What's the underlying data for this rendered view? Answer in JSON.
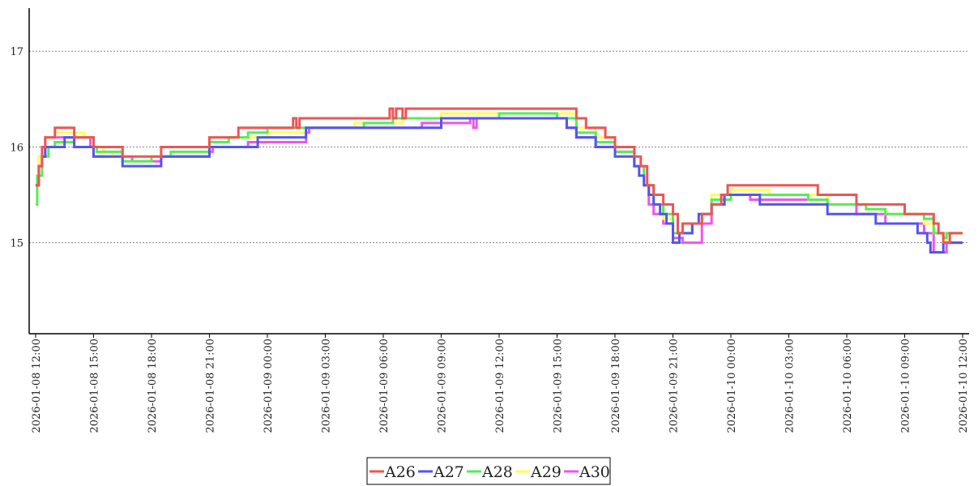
{
  "chart_data": {
    "type": "line",
    "step": true,
    "x_type": "datetime",
    "xlim": [
      "2026-01-08 11:40",
      "2026-01-10 12:20"
    ],
    "xticks": [
      "2026-01-08 12:00",
      "2026-01-08 15:00",
      "2026-01-08 18:00",
      "2026-01-08 21:00",
      "2026-01-09 00:00",
      "2026-01-09 03:00",
      "2026-01-09 06:00",
      "2026-01-09 09:00",
      "2026-01-09 12:00",
      "2026-01-09 15:00",
      "2026-01-09 18:00",
      "2026-01-09 21:00",
      "2026-01-10 00:00",
      "2026-01-10 03:00",
      "2026-01-10 06:00",
      "2026-01-10 09:00",
      "2026-01-10 12:00"
    ],
    "xtick_labels": [
      "2026-01-08 12:00",
      "2026-01-08 15:00",
      "2026-01-08 18:00",
      "2026-01-08 21:00",
      "2026-01-09 00:00",
      "2026-01-09 03:00",
      "2026-01-09 06:00",
      "2026-01-09 09:00",
      "2026-01-09 12:00",
      "2026-01-09 15:00",
      "2026-01-09 18:00",
      "2026-01-09 21:00",
      "2026-01-10 00:00",
      "2026-01-10 03:00",
      "2026-01-10 06:00",
      "2026-01-10 09:00",
      "2026-01-10 12:00"
    ],
    "ylim": [
      14.05,
      17.45
    ],
    "yticks": [
      15,
      16,
      17
    ],
    "ytick_labels": [
      "15",
      "16",
      "17"
    ],
    "grid": "horizontal dotted",
    "legend_position": "bottom-center",
    "title": "",
    "xlabel": "",
    "ylabel": "",
    "series": [
      {
        "name": "A30",
        "color": "#ee55ee",
        "points": [
          [
            "2026-01-08 12:00",
            15.6
          ],
          [
            "2026-01-08 12:10",
            15.9
          ],
          [
            "2026-01-08 12:30",
            16.1
          ],
          [
            "2026-01-08 13:00",
            16.1
          ],
          [
            "2026-01-08 14:50",
            16.0
          ],
          [
            "2026-01-08 15:00",
            15.9
          ],
          [
            "2026-01-08 15:30",
            15.9
          ],
          [
            "2026-01-08 17:00",
            15.85
          ],
          [
            "2026-01-08 18:30",
            15.9
          ],
          [
            "2026-01-08 21:00",
            15.95
          ],
          [
            "2026-01-08 21:10",
            16.0
          ],
          [
            "2026-01-08 23:00",
            16.05
          ],
          [
            "2026-01-09 02:00",
            16.15
          ],
          [
            "2026-01-09 02:10",
            16.2
          ],
          [
            "2026-01-09 06:00",
            16.2
          ],
          [
            "2026-01-09 08:00",
            16.25
          ],
          [
            "2026-01-09 10:30",
            16.3
          ],
          [
            "2026-01-09 10:40",
            16.2
          ],
          [
            "2026-01-09 10:50",
            16.3
          ],
          [
            "2026-01-09 15:30",
            16.2
          ],
          [
            "2026-01-09 16:00",
            16.1
          ],
          [
            "2026-01-09 17:00",
            16.0
          ],
          [
            "2026-01-09 18:00",
            15.95
          ],
          [
            "2026-01-09 19:00",
            15.8
          ],
          [
            "2026-01-09 19:30",
            15.6
          ],
          [
            "2026-01-09 19:45",
            15.4
          ],
          [
            "2026-01-09 20:00",
            15.3
          ],
          [
            "2026-01-09 20:30",
            15.2
          ],
          [
            "2026-01-09 21:00",
            15.05
          ],
          [
            "2026-01-09 21:30",
            15.0
          ],
          [
            "2026-01-09 22:00",
            15.0
          ],
          [
            "2026-01-09 22:30",
            15.2
          ],
          [
            "2026-01-09 23:00",
            15.4
          ],
          [
            "2026-01-09 23:40",
            15.5
          ],
          [
            "2026-01-10 01:00",
            15.45
          ],
          [
            "2026-01-10 03:00",
            15.45
          ],
          [
            "2026-01-10 05:00",
            15.4
          ],
          [
            "2026-01-10 06:30",
            15.3
          ],
          [
            "2026-01-10 08:00",
            15.2
          ],
          [
            "2026-01-10 10:00",
            15.1
          ],
          [
            "2026-01-10 10:30",
            14.9
          ],
          [
            "2026-01-10 11:00",
            14.9
          ],
          [
            "2026-01-10 11:10",
            15.0
          ]
        ]
      },
      {
        "name": "A29",
        "color": "#ffff55",
        "points": [
          [
            "2026-01-08 12:00",
            15.6
          ],
          [
            "2026-01-08 12:10",
            15.9
          ],
          [
            "2026-01-08 12:30",
            16.1
          ],
          [
            "2026-01-08 13:00",
            16.15
          ],
          [
            "2026-01-08 14:30",
            16.1
          ],
          [
            "2026-01-08 15:00",
            16.0
          ],
          [
            "2026-01-08 15:30",
            15.95
          ],
          [
            "2026-01-08 16:00",
            15.9
          ],
          [
            "2026-01-08 18:30",
            16.0
          ],
          [
            "2026-01-08 21:00",
            16.05
          ],
          [
            "2026-01-08 22:00",
            16.1
          ],
          [
            "2026-01-09 00:00",
            16.15
          ],
          [
            "2026-01-09 02:00",
            16.2
          ],
          [
            "2026-01-09 04:30",
            16.25
          ],
          [
            "2026-01-09 05:30",
            16.25
          ],
          [
            "2026-01-09 07:00",
            16.3
          ],
          [
            "2026-01-09 09:00",
            16.35
          ],
          [
            "2026-01-09 15:30",
            16.35
          ],
          [
            "2026-01-09 16:00",
            16.2
          ],
          [
            "2026-01-09 17:00",
            16.1
          ],
          [
            "2026-01-09 18:00",
            16.0
          ],
          [
            "2026-01-09 19:00",
            15.8
          ],
          [
            "2026-01-09 19:30",
            15.6
          ],
          [
            "2026-01-09 20:00",
            15.4
          ],
          [
            "2026-01-09 20:30",
            15.25
          ],
          [
            "2026-01-09 21:00",
            15.1
          ],
          [
            "2026-01-09 22:00",
            15.2
          ],
          [
            "2026-01-09 22:30",
            15.3
          ],
          [
            "2026-01-09 23:00",
            15.5
          ],
          [
            "2026-01-10 00:00",
            15.55
          ],
          [
            "2026-01-10 02:00",
            15.5
          ],
          [
            "2026-01-10 05:00",
            15.4
          ],
          [
            "2026-01-10 07:00",
            15.35
          ],
          [
            "2026-01-10 08:00",
            15.3
          ],
          [
            "2026-01-10 10:00",
            15.2
          ],
          [
            "2026-01-10 10:30",
            15.1
          ],
          [
            "2026-01-10 11:00",
            15.0
          ],
          [
            "2026-01-10 11:10",
            15.1
          ]
        ]
      },
      {
        "name": "A28",
        "color": "#55ee55",
        "points": [
          [
            "2026-01-08 12:00",
            15.4
          ],
          [
            "2026-01-08 12:05",
            15.7
          ],
          [
            "2026-01-08 12:20",
            15.9
          ],
          [
            "2026-01-08 12:40",
            16.0
          ],
          [
            "2026-01-08 13:00",
            16.05
          ],
          [
            "2026-01-08 14:00",
            16.1
          ],
          [
            "2026-01-08 15:00",
            16.0
          ],
          [
            "2026-01-08 15:10",
            15.95
          ],
          [
            "2026-01-08 16:30",
            15.85
          ],
          [
            "2026-01-08 18:00",
            15.9
          ],
          [
            "2026-01-08 19:00",
            15.95
          ],
          [
            "2026-01-08 21:00",
            16.05
          ],
          [
            "2026-01-08 22:00",
            16.1
          ],
          [
            "2026-01-08 23:00",
            16.15
          ],
          [
            "2026-01-09 00:00",
            16.2
          ],
          [
            "2026-01-09 05:00",
            16.25
          ],
          [
            "2026-01-09 06:30",
            16.3
          ],
          [
            "2026-01-09 12:00",
            16.35
          ],
          [
            "2026-01-09 15:00",
            16.3
          ],
          [
            "2026-01-09 16:00",
            16.15
          ],
          [
            "2026-01-09 17:00",
            16.05
          ],
          [
            "2026-01-09 18:00",
            15.95
          ],
          [
            "2026-01-09 19:00",
            15.8
          ],
          [
            "2026-01-09 19:30",
            15.6
          ],
          [
            "2026-01-09 20:00",
            15.4
          ],
          [
            "2026-01-09 20:30",
            15.3
          ],
          [
            "2026-01-09 21:00",
            15.1
          ],
          [
            "2026-01-09 22:00",
            15.2
          ],
          [
            "2026-01-09 22:30",
            15.3
          ],
          [
            "2026-01-09 23:00",
            15.45
          ],
          [
            "2026-01-10 00:00",
            15.5
          ],
          [
            "2026-01-10 04:00",
            15.45
          ],
          [
            "2026-01-10 05:00",
            15.4
          ],
          [
            "2026-01-10 07:00",
            15.35
          ],
          [
            "2026-01-10 08:00",
            15.3
          ],
          [
            "2026-01-10 10:00",
            15.25
          ],
          [
            "2026-01-10 10:30",
            15.1
          ],
          [
            "2026-01-10 11:00",
            15.05
          ],
          [
            "2026-01-10 11:10",
            15.1
          ]
        ]
      },
      {
        "name": "A27",
        "color": "#5555ee",
        "points": [
          [
            "2026-01-08 12:00",
            15.6
          ],
          [
            "2026-01-08 12:10",
            15.8
          ],
          [
            "2026-01-08 12:20",
            15.9
          ],
          [
            "2026-01-08 12:30",
            16.0
          ],
          [
            "2026-01-08 13:30",
            16.1
          ],
          [
            "2026-01-08 14:00",
            16.0
          ],
          [
            "2026-01-08 15:00",
            15.9
          ],
          [
            "2026-01-08 16:30",
            15.8
          ],
          [
            "2026-01-08 18:30",
            15.9
          ],
          [
            "2026-01-08 21:00",
            16.0
          ],
          [
            "2026-01-08 23:30",
            16.1
          ],
          [
            "2026-01-09 02:00",
            16.2
          ],
          [
            "2026-01-09 09:00",
            16.3
          ],
          [
            "2026-01-09 15:30",
            16.2
          ],
          [
            "2026-01-09 16:00",
            16.1
          ],
          [
            "2026-01-09 17:00",
            16.0
          ],
          [
            "2026-01-09 18:00",
            15.9
          ],
          [
            "2026-01-09 19:00",
            15.8
          ],
          [
            "2026-01-09 19:15",
            15.7
          ],
          [
            "2026-01-09 19:30",
            15.6
          ],
          [
            "2026-01-09 19:45",
            15.5
          ],
          [
            "2026-01-09 20:00",
            15.4
          ],
          [
            "2026-01-09 20:20",
            15.3
          ],
          [
            "2026-01-09 20:40",
            15.2
          ],
          [
            "2026-01-09 21:00",
            15.0
          ],
          [
            "2026-01-09 21:20",
            15.1
          ],
          [
            "2026-01-09 22:00",
            15.2
          ],
          [
            "2026-01-09 22:20",
            15.3
          ],
          [
            "2026-01-09 23:00",
            15.4
          ],
          [
            "2026-01-09 23:40",
            15.5
          ],
          [
            "2026-01-10 01:30",
            15.4
          ],
          [
            "2026-01-10 05:00",
            15.3
          ],
          [
            "2026-01-10 07:30",
            15.2
          ],
          [
            "2026-01-10 09:40",
            15.1
          ],
          [
            "2026-01-10 10:10",
            15.0
          ],
          [
            "2026-01-10 10:20",
            14.9
          ],
          [
            "2026-01-10 11:00",
            15.0
          ],
          [
            "2026-01-10 12:00",
            15.0
          ]
        ]
      },
      {
        "name": "A26",
        "color": "#ee5555",
        "points": [
          [
            "2026-01-08 12:00",
            15.6
          ],
          [
            "2026-01-08 12:10",
            15.8
          ],
          [
            "2026-01-08 12:20",
            16.0
          ],
          [
            "2026-01-08 12:30",
            16.1
          ],
          [
            "2026-01-08 13:00",
            16.2
          ],
          [
            "2026-01-08 14:00",
            16.1
          ],
          [
            "2026-01-08 15:00",
            16.0
          ],
          [
            "2026-01-08 16:30",
            15.9
          ],
          [
            "2026-01-08 18:30",
            16.0
          ],
          [
            "2026-01-08 21:00",
            16.1
          ],
          [
            "2026-01-08 22:30",
            16.2
          ],
          [
            "2026-01-09 01:20",
            16.3
          ],
          [
            "2026-01-09 01:30",
            16.2
          ],
          [
            "2026-01-09 01:40",
            16.3
          ],
          [
            "2026-01-09 06:20",
            16.4
          ],
          [
            "2026-01-09 06:30",
            16.3
          ],
          [
            "2026-01-09 06:40",
            16.4
          ],
          [
            "2026-01-09 07:00",
            16.3
          ],
          [
            "2026-01-09 07:10",
            16.4
          ],
          [
            "2026-01-09 16:00",
            16.3
          ],
          [
            "2026-01-09 16:30",
            16.2
          ],
          [
            "2026-01-09 17:30",
            16.1
          ],
          [
            "2026-01-09 18:00",
            16.0
          ],
          [
            "2026-01-09 19:00",
            15.9
          ],
          [
            "2026-01-09 19:20",
            15.8
          ],
          [
            "2026-01-09 19:40",
            15.6
          ],
          [
            "2026-01-09 20:00",
            15.5
          ],
          [
            "2026-01-09 20:30",
            15.4
          ],
          [
            "2026-01-09 21:00",
            15.3
          ],
          [
            "2026-01-09 21:15",
            15.1
          ],
          [
            "2026-01-09 21:30",
            15.2
          ],
          [
            "2026-01-09 22:30",
            15.3
          ],
          [
            "2026-01-09 23:00",
            15.4
          ],
          [
            "2026-01-09 23:30",
            15.5
          ],
          [
            "2026-01-09 23:50",
            15.6
          ],
          [
            "2026-01-10 04:30",
            15.5
          ],
          [
            "2026-01-10 06:30",
            15.4
          ],
          [
            "2026-01-10 09:00",
            15.3
          ],
          [
            "2026-01-10 10:30",
            15.2
          ],
          [
            "2026-01-10 10:45",
            15.1
          ],
          [
            "2026-01-10 11:00",
            15.0
          ],
          [
            "2026-01-10 11:20",
            15.1
          ],
          [
            "2026-01-10 12:00",
            15.1
          ]
        ]
      }
    ],
    "legend": [
      "A26",
      "A27",
      "A28",
      "A29",
      "A30"
    ]
  }
}
